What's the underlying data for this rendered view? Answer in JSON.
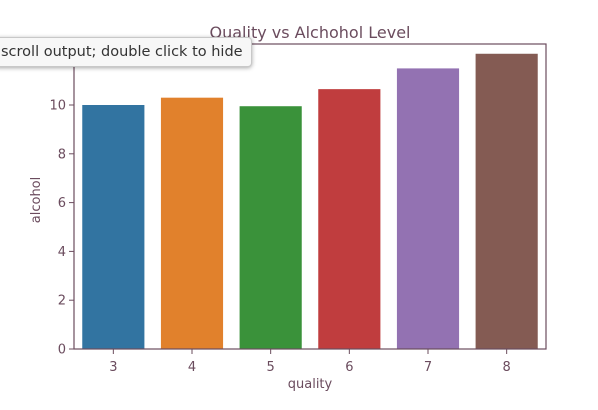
{
  "tooltip": {
    "text": "scroll output; double click to hide"
  },
  "colors": {
    "text": "#6b4c5e",
    "axis": "#6b4c5e",
    "bars": [
      "#3274a1",
      "#e1812c",
      "#3a923a",
      "#c03d3e",
      "#9372b2",
      "#845b53"
    ]
  },
  "chart_data": {
    "type": "bar",
    "title": "Quality vs Alchohol Level",
    "xlabel": "quality",
    "ylabel": "alcohol",
    "categories": [
      "3",
      "4",
      "5",
      "6",
      "7",
      "8"
    ],
    "values": [
      10.0,
      10.3,
      9.95,
      10.65,
      11.5,
      12.1
    ],
    "yticks": [
      "0",
      "2",
      "4",
      "6",
      "8",
      "10",
      "12"
    ],
    "ylim": [
      0,
      12.5
    ],
    "grid": false,
    "legend": "none"
  }
}
